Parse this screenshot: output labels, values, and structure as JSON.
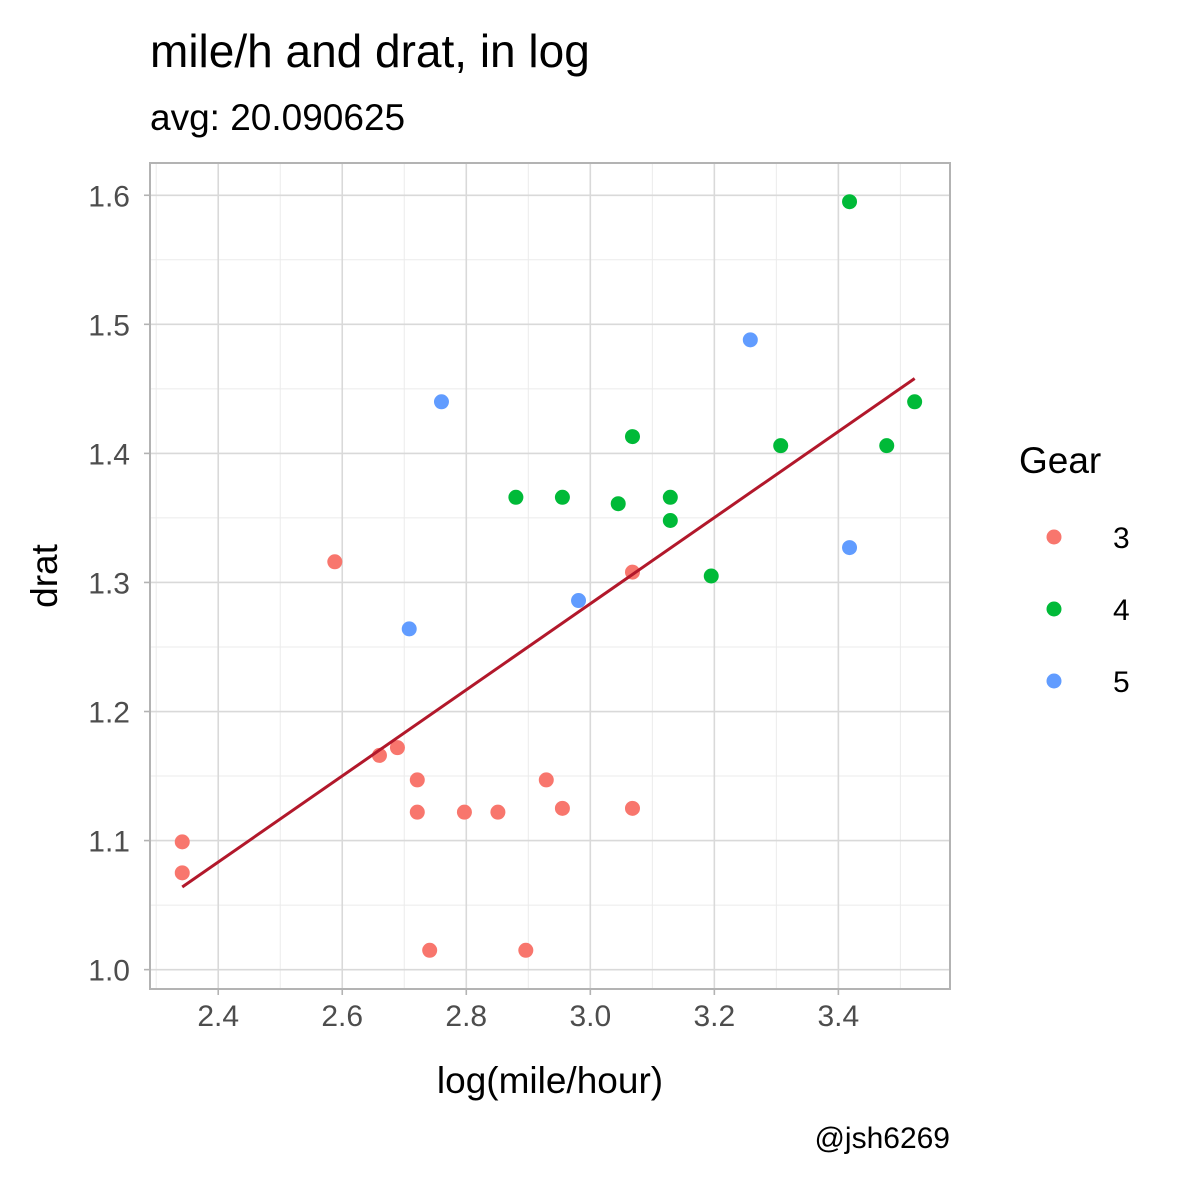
{
  "chart_data": {
    "type": "scatter",
    "title": "mile/h and drat, in log",
    "subtitle": "avg: 20.090625",
    "caption": "@jsh6269",
    "xlabel": "log(mile/hour)",
    "ylabel": "drat",
    "xlim": [
      2.29,
      3.58
    ],
    "ylim": [
      0.985,
      1.625
    ],
    "x_ticks": [
      2.4,
      2.6,
      2.8,
      3.0,
      3.2,
      3.4
    ],
    "x_tick_labels": [
      "2.4",
      "2.6",
      "2.8",
      "3.0",
      "3.2",
      "3.4"
    ],
    "y_ticks": [
      1.0,
      1.1,
      1.2,
      1.3,
      1.4,
      1.5,
      1.6
    ],
    "y_tick_labels": [
      "1.0",
      "1.1",
      "1.2",
      "1.3",
      "1.4",
      "1.5",
      "1.6"
    ],
    "grid": true,
    "legend": {
      "title": "Gear",
      "position": "right",
      "entries": [
        {
          "label": "3",
          "color": "#F8766D"
        },
        {
          "label": "4",
          "color": "#00BA38"
        },
        {
          "label": "5",
          "color": "#619CFF"
        }
      ]
    },
    "series": [
      {
        "name": "3",
        "color": "#F8766D",
        "points": [
          [
            2.342,
            1.099
          ],
          [
            2.342,
            1.075
          ],
          [
            2.588,
            1.316
          ],
          [
            2.66,
            1.166
          ],
          [
            2.689,
            1.172
          ],
          [
            2.721,
            1.147
          ],
          [
            2.721,
            1.122
          ],
          [
            2.741,
            1.015
          ],
          [
            2.797,
            1.122
          ],
          [
            2.851,
            1.122
          ],
          [
            2.896,
            1.015
          ],
          [
            2.929,
            1.147
          ],
          [
            2.955,
            1.125
          ],
          [
            3.068,
            1.125
          ],
          [
            3.068,
            1.308
          ]
        ]
      },
      {
        "name": "4",
        "color": "#00BA38",
        "points": [
          [
            2.88,
            1.366
          ],
          [
            2.955,
            1.366
          ],
          [
            3.045,
            1.361
          ],
          [
            3.068,
            1.413
          ],
          [
            3.129,
            1.366
          ],
          [
            3.129,
            1.348
          ],
          [
            3.195,
            1.305
          ],
          [
            3.307,
            1.406
          ],
          [
            3.418,
            1.595
          ],
          [
            3.478,
            1.406
          ],
          [
            3.523,
            1.44
          ]
        ]
      },
      {
        "name": "5",
        "color": "#619CFF",
        "points": [
          [
            2.708,
            1.264
          ],
          [
            2.76,
            1.44
          ],
          [
            2.981,
            1.286
          ],
          [
            3.258,
            1.488
          ],
          [
            3.418,
            1.327
          ]
        ]
      }
    ],
    "trend_line": {
      "type": "linear fit",
      "color": "#B2182B",
      "points": [
        [
          2.342,
          1.064
        ],
        [
          3.523,
          1.458
        ]
      ]
    }
  }
}
